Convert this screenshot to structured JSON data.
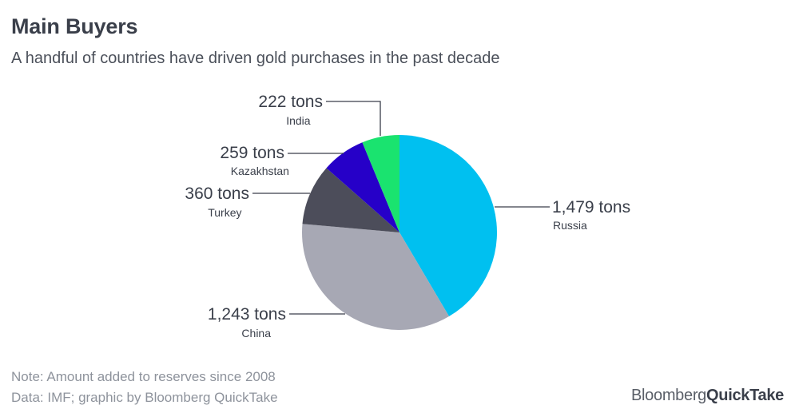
{
  "header": {
    "title": "Main Buyers",
    "subtitle": "A handful of countries have driven gold purchases in the past decade"
  },
  "footer": {
    "note": "Note: Amount added to reserves since 2008",
    "source": "Data: IMF; graphic by Bloomberg QuickTake",
    "brand_part1": "Bloomberg",
    "brand_part2": "QuickTake"
  },
  "chart_data": {
    "type": "pie",
    "unit": "tons",
    "start_angle_deg": 0,
    "direction": "clockwise",
    "slices": [
      {
        "label": "Russia",
        "value": 1479,
        "value_label": "1,479 tons",
        "color": "#00c0f0"
      },
      {
        "label": "China",
        "value": 1243,
        "value_label": "1,243 tons",
        "color": "#a7a8b4"
      },
      {
        "label": "Turkey",
        "value": 360,
        "value_label": "360 tons",
        "color": "#4c4d5a"
      },
      {
        "label": "Kazakhstan",
        "value": 259,
        "value_label": "259 tons",
        "color": "#2600c8"
      },
      {
        "label": "India",
        "value": 222,
        "value_label": "222 tons",
        "color": "#1ae36f"
      }
    ]
  }
}
